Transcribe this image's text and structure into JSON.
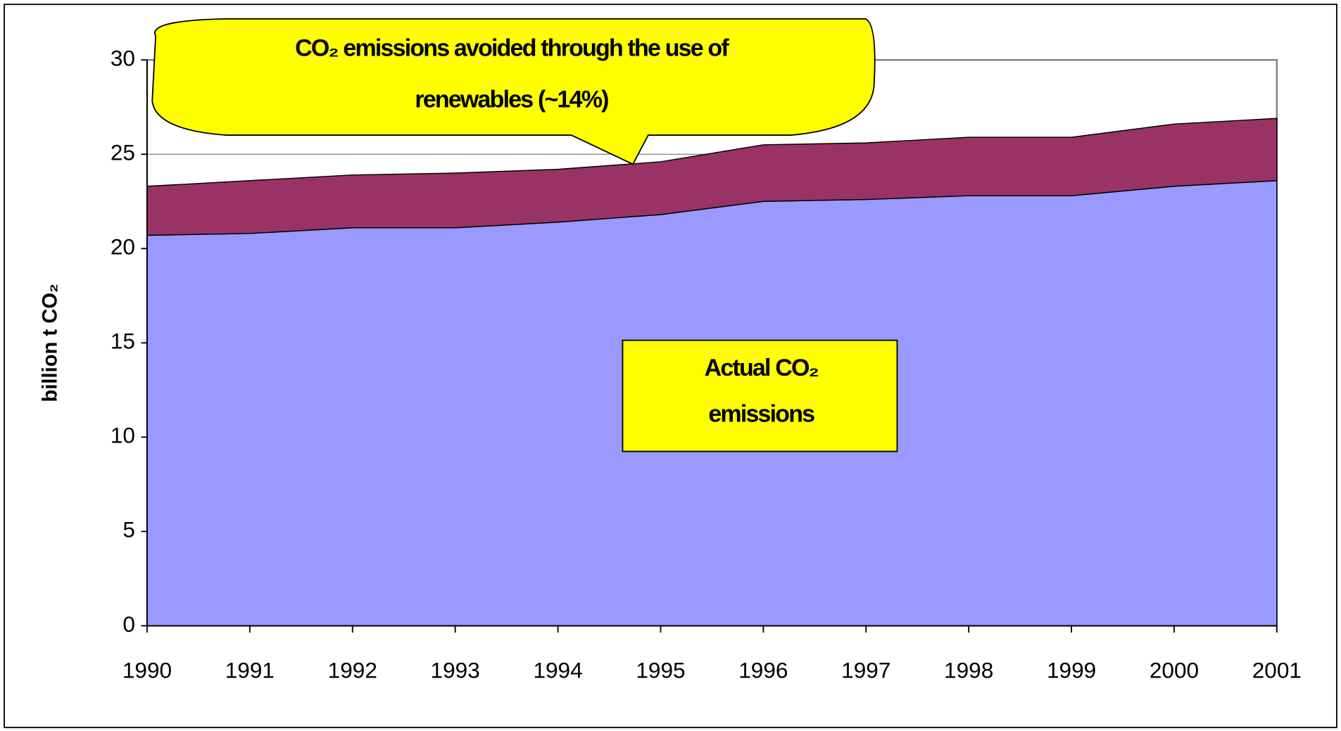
{
  "chart_data": {
    "type": "stacked_area",
    "ylabel": "billion t CO₂",
    "annotations": [
      {
        "lines": [
          "CO₂ emissions avoided through the use of",
          "renewables (~14%)"
        ]
      },
      {
        "lines": [
          "Actual CO₂",
          "emissions"
        ]
      }
    ],
    "categories": [
      "1990",
      "1991",
      "1992",
      "1993",
      "1994",
      "1995",
      "1996",
      "1997",
      "1998",
      "1999",
      "2000",
      "2001"
    ],
    "series": [
      {
        "color": "#9999ff",
        "values": [
          20.7,
          20.8,
          21.1,
          21.1,
          21.4,
          21.8,
          22.5,
          22.6,
          22.8,
          22.8,
          23.3,
          23.6
        ]
      },
      {
        "color": "#993366",
        "values": [
          2.6,
          2.8,
          2.8,
          2.9,
          2.8,
          2.8,
          3.0,
          3.0,
          3.1,
          3.1,
          3.3,
          3.3
        ]
      }
    ],
    "ylim": [
      0,
      30
    ],
    "yticks": [
      0,
      5,
      10,
      15,
      20,
      25,
      30
    ],
    "grid": true
  }
}
